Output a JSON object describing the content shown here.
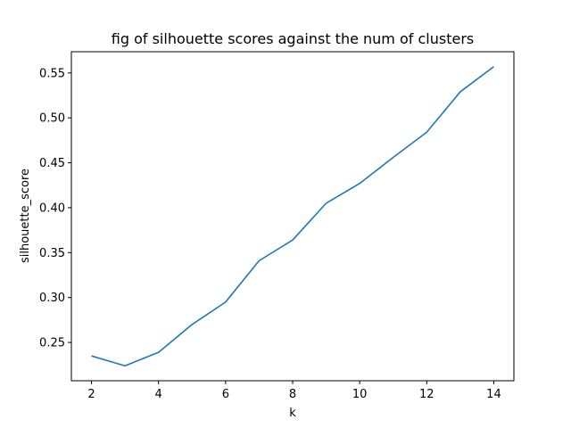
{
  "chart_data": {
    "type": "line",
    "title": "fig of silhouette scores against the num of clusters",
    "xlabel": "k",
    "ylabel": "silhouette_score",
    "x": [
      2,
      3,
      4,
      5,
      6,
      7,
      8,
      9,
      10,
      11,
      12,
      13,
      14
    ],
    "series": [
      {
        "values": [
          0.235,
          0.224,
          0.239,
          0.27,
          0.295,
          0.341,
          0.364,
          0.405,
          0.427,
          0.456,
          0.484,
          0.529,
          0.557
        ],
        "color": "#1f77b4"
      }
    ],
    "xlim": [
      1.4,
      14.6
    ],
    "ylim": [
      0.2074,
      0.5736
    ],
    "xticks": [
      2,
      4,
      6,
      8,
      10,
      12,
      14
    ],
    "xtick_labels": [
      "2",
      "4",
      "6",
      "8",
      "10",
      "12",
      "14"
    ],
    "yticks": [
      0.25,
      0.3,
      0.35,
      0.4,
      0.45,
      0.5,
      0.55
    ],
    "ytick_labels": [
      "0.25",
      "0.30",
      "0.35",
      "0.40",
      "0.45",
      "0.50",
      "0.55"
    ],
    "grid": false,
    "legend": false
  }
}
